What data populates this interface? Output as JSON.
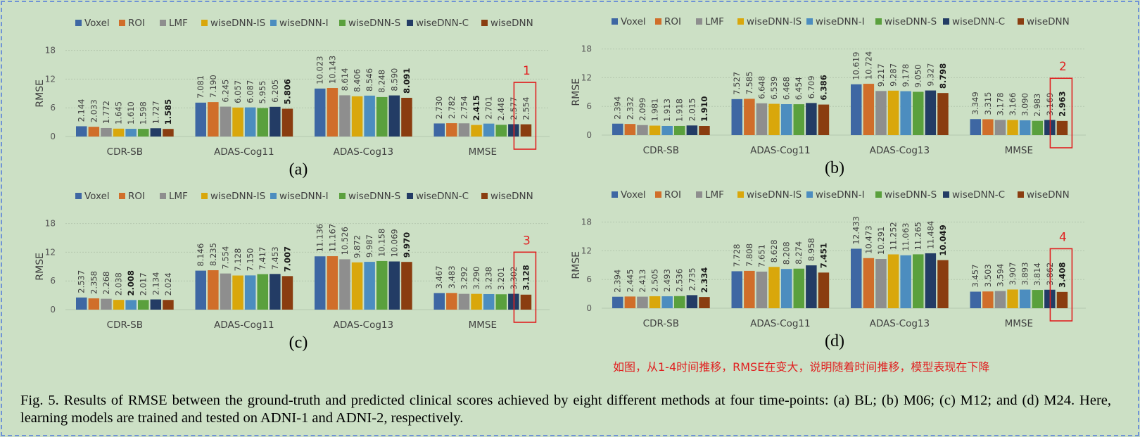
{
  "legend": [
    "Voxel",
    "ROI",
    "LMF",
    "wiseDNN-IS",
    "wiseDNN-I",
    "wiseDNN-S",
    "wiseDNN-C",
    "wiseDNN"
  ],
  "colors": [
    "#3e67a3",
    "#d06e2a",
    "#8e8e8e",
    "#d9a70b",
    "#4c8dbf",
    "#5aa03d",
    "#233c65",
    "#8a3d10"
  ],
  "chart_data": [
    {
      "type": "bar",
      "panel_label": "(a)",
      "ylabel": "RMSE",
      "yticks": [
        0,
        6,
        12,
        18
      ],
      "ylim": [
        0,
        18
      ],
      "grid": true,
      "legend_position": "top",
      "categories": [
        "CDR-SB",
        "ADAS-Cog11",
        "ADAS-Cog13",
        "MMSE"
      ],
      "series": [
        {
          "name": "Voxel",
          "values": [
            2.144,
            7.081,
            10.023,
            2.73
          ]
        },
        {
          "name": "ROI",
          "values": [
            2.033,
            7.19,
            10.143,
            2.782
          ]
        },
        {
          "name": "LMF",
          "values": [
            1.772,
            6.245,
            8.614,
            2.754
          ]
        },
        {
          "name": "wiseDNN-IS",
          "values": [
            1.645,
            6.057,
            8.406,
            2.415
          ]
        },
        {
          "name": "wiseDNN-I",
          "values": [
            1.61,
            6.087,
            8.546,
            2.701
          ]
        },
        {
          "name": "wiseDNN-S",
          "values": [
            1.598,
            5.955,
            8.248,
            2.448
          ]
        },
        {
          "name": "wiseDNN-C",
          "values": [
            1.727,
            6.205,
            8.59,
            2.577
          ]
        },
        {
          "name": "wiseDNN",
          "values": [
            1.585,
            5.806,
            8.091,
            2.554
          ]
        }
      ],
      "labels": [
        [
          "2.144",
          "7.081",
          "10.023",
          "2.730"
        ],
        [
          "2.033",
          "7.190",
          "10.143",
          "2.782"
        ],
        [
          "1.772",
          "6.245",
          "8.614",
          "2.754"
        ],
        [
          "1.645",
          "6.057",
          "8.406",
          "2.415"
        ],
        [
          "1.610",
          "6.087",
          "8.546",
          "2.701"
        ],
        [
          "1.598",
          "5.955",
          "8.248",
          "2.448"
        ],
        [
          "1.727",
          "6.205",
          "8.590",
          "2.577"
        ],
        [
          "1.585",
          "5.806",
          "8.091",
          "2.554"
        ]
      ],
      "bold": [
        [
          7,
          7,
          7,
          -1
        ],
        [
          3
        ]
      ],
      "highlight": {
        "number": "1",
        "category": "MMSE"
      }
    },
    {
      "type": "bar",
      "panel_label": "(b)",
      "ylabel": "RMSE",
      "yticks": [
        0,
        6,
        12,
        18
      ],
      "ylim": [
        0,
        18
      ],
      "grid": true,
      "legend_position": "top",
      "categories": [
        "CDR-SB",
        "ADAS-Cog11",
        "ADAS-Cog13",
        "MMSE"
      ],
      "series": [
        {
          "name": "Voxel",
          "values": [
            2.394,
            7.527,
            10.619,
            3.349
          ]
        },
        {
          "name": "ROI",
          "values": [
            2.332,
            7.585,
            10.724,
            3.315
          ]
        },
        {
          "name": "LMF",
          "values": [
            2.099,
            6.648,
            9.217,
            3.178
          ]
        },
        {
          "name": "wiseDNN-IS",
          "values": [
            1.981,
            6.539,
            9.287,
            3.166
          ]
        },
        {
          "name": "wiseDNN-I",
          "values": [
            1.913,
            6.468,
            9.178,
            3.09
          ]
        },
        {
          "name": "wiseDNN-S",
          "values": [
            1.918,
            6.454,
            9.05,
            2.983
          ]
        },
        {
          "name": "wiseDNN-C",
          "values": [
            2.015,
            6.709,
            9.327,
            3.169
          ]
        },
        {
          "name": "wiseDNN",
          "values": [
            1.91,
            6.386,
            8.798,
            2.963
          ]
        }
      ],
      "labels": [
        [
          "2.394",
          "7.527",
          "10.619",
          "3.349"
        ],
        [
          "2.332",
          "7.585",
          "10.724",
          "3.315"
        ],
        [
          "2.099",
          "6.648",
          "9.217",
          "3.178"
        ],
        [
          "1.981",
          "6.539",
          "9.287",
          "3.166"
        ],
        [
          "1.913",
          "6.468",
          "9.178",
          "3.090"
        ],
        [
          "1.918",
          "6.454",
          "9.050",
          "2.983"
        ],
        [
          "2.015",
          "6.709",
          "9.327",
          "3.169"
        ],
        [
          "1.910",
          "6.386",
          "8.798",
          "2.963"
        ]
      ],
      "bold": [
        [
          7,
          7,
          7,
          7
        ],
        []
      ],
      "highlight": {
        "number": "2",
        "category": "MMSE"
      }
    },
    {
      "type": "bar",
      "panel_label": "(c)",
      "ylabel": "RMSE",
      "yticks": [
        0,
        6,
        12,
        18
      ],
      "ylim": [
        0,
        18
      ],
      "grid": true,
      "legend_position": "top",
      "categories": [
        "CDR-SB",
        "ADAS-Cog11",
        "ADAS-Cog13",
        "MMSE"
      ],
      "series": [
        {
          "name": "Voxel",
          "values": [
            2.537,
            8.146,
            11.136,
            3.467
          ]
        },
        {
          "name": "ROI",
          "values": [
            2.358,
            8.235,
            11.167,
            3.483
          ]
        },
        {
          "name": "LMF",
          "values": [
            2.268,
            7.554,
            10.526,
            3.292
          ]
        },
        {
          "name": "wiseDNN-IS",
          "values": [
            2.038,
            7.128,
            9.872,
            3.29
          ]
        },
        {
          "name": "wiseDNN-I",
          "values": [
            2.008,
            7.15,
            9.987,
            3.238
          ]
        },
        {
          "name": "wiseDNN-S",
          "values": [
            2.017,
            7.417,
            10.158,
            3.201
          ]
        },
        {
          "name": "wiseDNN-C",
          "values": [
            2.134,
            7.453,
            10.069,
            3.302
          ]
        },
        {
          "name": "wiseDNN",
          "values": [
            2.024,
            7.007,
            9.97,
            3.128
          ]
        }
      ],
      "labels": [
        [
          "2.537",
          "8.146",
          "11.136",
          "3.467"
        ],
        [
          "2.358",
          "8.235",
          "11.167",
          "3.483"
        ],
        [
          "2.268",
          "7.554",
          "10.526",
          "3.292"
        ],
        [
          "2.038",
          "7.128",
          "9.872",
          "3.290"
        ],
        [
          "2.008",
          "7.150",
          "9.987",
          "3.238"
        ],
        [
          "2.017",
          "7.417",
          "10.158",
          "3.201"
        ],
        [
          "2.134",
          "7.453",
          "10.069",
          "3.302"
        ],
        [
          "2.024",
          "7.007",
          "9.970",
          "3.128"
        ]
      ],
      "bold": [
        [
          4,
          7,
          7,
          7
        ],
        []
      ],
      "highlight": {
        "number": "3",
        "category": "MMSE"
      }
    },
    {
      "type": "bar",
      "panel_label": "(d)",
      "ylabel": "RMSE",
      "yticks": [
        0,
        6,
        12,
        18
      ],
      "ylim": [
        0,
        18
      ],
      "grid": true,
      "legend_position": "top",
      "categories": [
        "CDR-SB",
        "ADAS-Cog11",
        "ADAS-Cog13",
        "MMSE"
      ],
      "series": [
        {
          "name": "Voxel",
          "values": [
            2.394,
            7.728,
            12.433,
            3.457
          ]
        },
        {
          "name": "ROI",
          "values": [
            2.445,
            7.808,
            10.473,
            3.503
          ]
        },
        {
          "name": "LMF",
          "values": [
            2.413,
            7.651,
            10.291,
            3.594
          ]
        },
        {
          "name": "wiseDNN-IS",
          "values": [
            2.505,
            8.628,
            11.252,
            3.907
          ]
        },
        {
          "name": "wiseDNN-I",
          "values": [
            2.493,
            8.208,
            11.063,
            3.893
          ]
        },
        {
          "name": "wiseDNN-S",
          "values": [
            2.536,
            8.274,
            11.265,
            3.814
          ]
        },
        {
          "name": "wiseDNN-C",
          "values": [
            2.735,
            8.958,
            11.484,
            3.862
          ]
        },
        {
          "name": "wiseDNN",
          "values": [
            2.334,
            7.451,
            10.049,
            3.408
          ]
        }
      ],
      "labels": [
        [
          "2.394",
          "7.728",
          "12.433",
          "3.457"
        ],
        [
          "2.445",
          "7.808",
          "10.473",
          "3.503"
        ],
        [
          "2.413",
          "7.651",
          "10.291",
          "3.594"
        ],
        [
          "2.505",
          "8.628",
          "11.252",
          "3.907"
        ],
        [
          "2.493",
          "8.208",
          "11.063",
          "3.893"
        ],
        [
          "2.536",
          "8.274",
          "11.265",
          "3.814"
        ],
        [
          "2.735",
          "8.958",
          "11.484",
          "3.862"
        ],
        [
          "2.334",
          "7.451",
          "10.049",
          "3.408"
        ]
      ],
      "bold": [
        [
          7,
          7,
          7,
          7
        ],
        []
      ],
      "highlight": {
        "number": "4",
        "category": "MMSE"
      }
    }
  ],
  "annotation_note": "如图，从1-4时间推移，RMSE在变大，说明随着时间推移，模型表现在下降",
  "caption": "Fig. 5.   Results of RMSE between the ground-truth and predicted clinical scores achieved by eight different methods at four time-points: (a) BL; (b) M06; (c) M12; and (d) M24. Here, learning models are trained and tested on ADNI-1 and ADNI-2, respectively."
}
